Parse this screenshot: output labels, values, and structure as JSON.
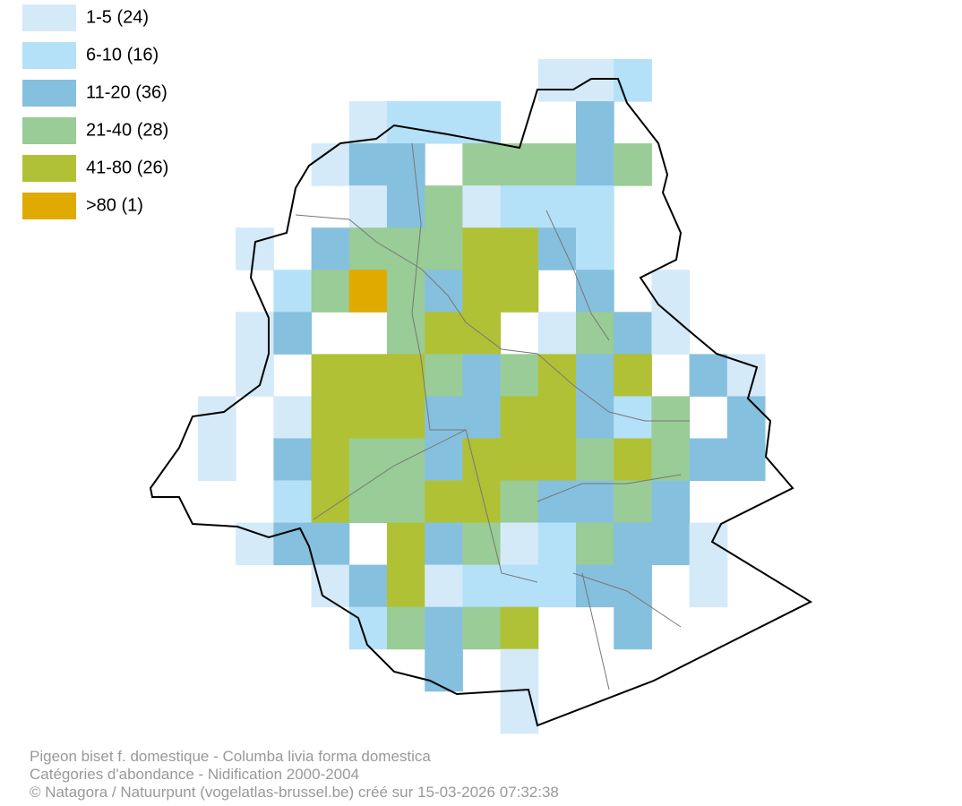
{
  "legend": {
    "items": [
      {
        "label": "1-5 (24)",
        "color": "#d4eaf9"
      },
      {
        "label": "6-10 (16)",
        "color": "#b4e1f8"
      },
      {
        "label": "11-20 (36)",
        "color": "#86c0df"
      },
      {
        "label": "21-40 (28)",
        "color": "#99cc96"
      },
      {
        "label": "41-80 (26)",
        "color": "#b1c135"
      },
      {
        "label": ">80 (1)",
        "color": "#e0aa00"
      }
    ]
  },
  "footer": {
    "lines": [
      "Pigeon biset f. domestique - Columba livia forma domestica",
      "Catégories d'abondance - Nidification 2000-2004",
      "© Natagora / Natuurpunt (vogelatlas-brussel.be) créé sur 15-03-2026 07:32:38"
    ]
  }
}
